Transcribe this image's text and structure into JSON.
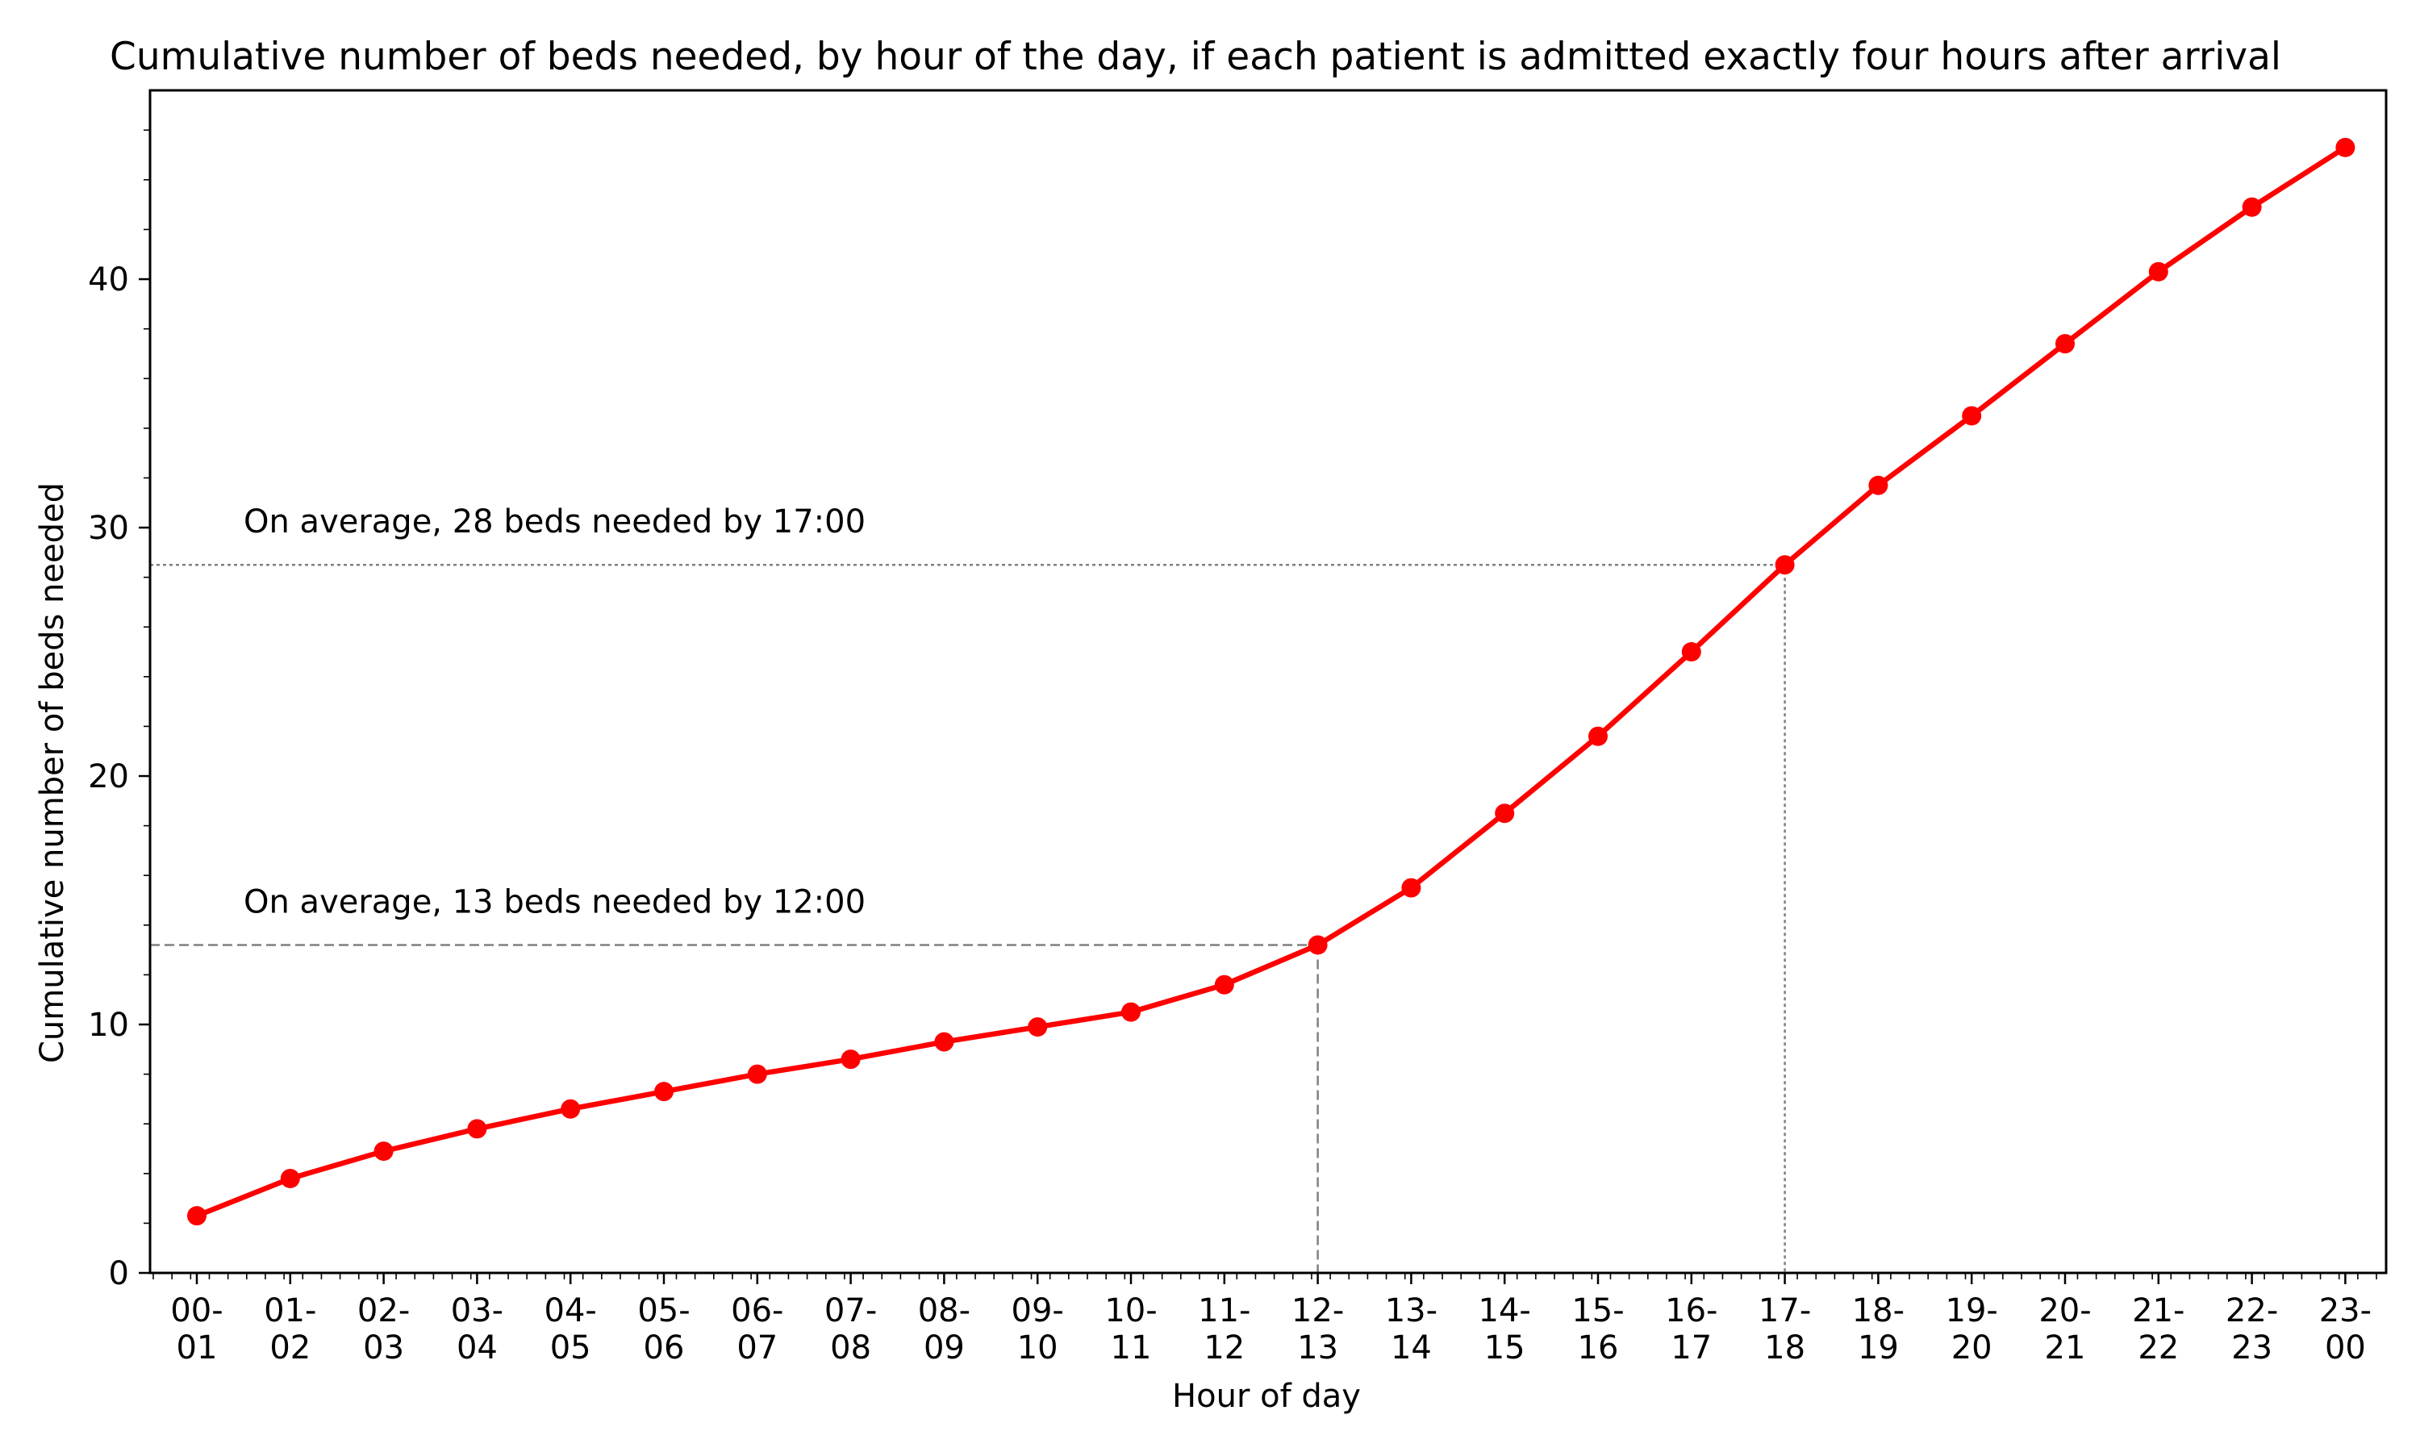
{
  "chart_data": {
    "type": "line",
    "title": "Cumulative number of beds needed, by hour of the day, if each patient is admitted exactly four hours after arrival",
    "xlabel": "Hour of day",
    "ylabel": "Cumulative number of beds needed",
    "categories": [
      [
        "00-",
        "01"
      ],
      [
        "01-",
        "02"
      ],
      [
        "02-",
        "03"
      ],
      [
        "03-",
        "04"
      ],
      [
        "04-",
        "05"
      ],
      [
        "05-",
        "06"
      ],
      [
        "06-",
        "07"
      ],
      [
        "07-",
        "08"
      ],
      [
        "08-",
        "09"
      ],
      [
        "09-",
        "10"
      ],
      [
        "10-",
        "11"
      ],
      [
        "11-",
        "12"
      ],
      [
        "12-",
        "13"
      ],
      [
        "13-",
        "14"
      ],
      [
        "14-",
        "15"
      ],
      [
        "15-",
        "16"
      ],
      [
        "16-",
        "17"
      ],
      [
        "17-",
        "18"
      ],
      [
        "18-",
        "19"
      ],
      [
        "19-",
        "20"
      ],
      [
        "20-",
        "21"
      ],
      [
        "21-",
        "22"
      ],
      [
        "22-",
        "23"
      ],
      [
        "23-",
        "00"
      ]
    ],
    "series": [
      {
        "values": [
          2.3,
          3.8,
          4.9,
          5.8,
          6.6,
          7.3,
          8.0,
          8.6,
          9.3,
          9.9,
          10.5,
          11.6,
          13.2,
          15.5,
          18.5,
          21.6,
          25.0,
          28.5,
          31.7,
          34.5,
          37.4,
          40.3,
          42.9,
          45.3
        ],
        "color": "#ff0000"
      }
    ],
    "ylim": [
      0,
      47.6
    ],
    "yticks": [
      0,
      10,
      20,
      30,
      40
    ],
    "grid": false,
    "reference_lines": [
      {
        "label": "On average, 13 beds needed by 12:00",
        "category_index": 12,
        "y": 13.2,
        "style": "dashed",
        "color": "#808080"
      },
      {
        "label": "On average, 28 beds needed by 17:00",
        "category_index": 17,
        "y": 28.5,
        "style": "dotted",
        "color": "#808080"
      }
    ]
  }
}
